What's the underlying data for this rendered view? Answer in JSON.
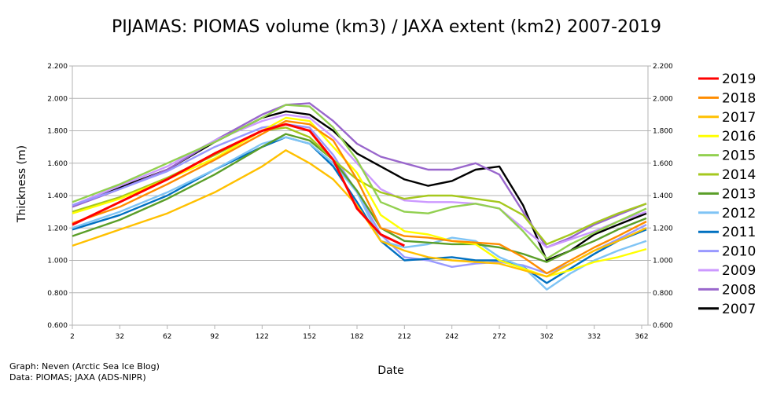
{
  "chart_data": {
    "type": "line",
    "title": "PIJAMAS: PIOMAS volume (km3) / JAXA extent (km2) 2007-2019",
    "xlabel": "Date",
    "ylabel": "Thickness (m)",
    "xlim": [
      2,
      365
    ],
    "ylim": [
      0.6,
      2.2
    ],
    "x_ticks": [
      2,
      32,
      62,
      92,
      122,
      152,
      182,
      212,
      242,
      272,
      302,
      332,
      362
    ],
    "x_tick_labels": [
      "2",
      "32",
      "62",
      "92",
      "122",
      "152",
      "182",
      "212",
      "242",
      "272",
      "302",
      "332",
      "362"
    ],
    "y_ticks": [
      0.6,
      0.8,
      1.0,
      1.2,
      1.4,
      1.6,
      1.8,
      2.0,
      2.2
    ],
    "y_tick_labels": [
      "0.600",
      "0.800",
      "1.000",
      "1.200",
      "1.400",
      "1.600",
      "1.800",
      "2.000",
      "2.200"
    ],
    "grid": true,
    "legend_position": "right",
    "x": [
      2,
      32,
      62,
      92,
      122,
      137,
      152,
      167,
      182,
      197,
      212,
      227,
      242,
      257,
      272,
      287,
      302,
      317,
      332,
      347,
      365
    ],
    "series": [
      {
        "name": "2019",
        "color": "#ff0000",
        "values": [
          1.22,
          1.36,
          1.5,
          1.66,
          1.8,
          1.84,
          1.8,
          1.62,
          1.32,
          1.16,
          1.09,
          null,
          null,
          null,
          null,
          null,
          null,
          null,
          null,
          null,
          null
        ]
      },
      {
        "name": "2018",
        "color": "#ff8c00",
        "values": [
          1.23,
          1.33,
          1.47,
          1.62,
          1.78,
          1.86,
          1.84,
          1.74,
          1.5,
          1.2,
          1.15,
          1.14,
          1.12,
          1.11,
          1.1,
          1.02,
          0.92,
          1.0,
          1.08,
          1.15,
          1.24
        ]
      },
      {
        "name": "2017",
        "color": "#ffc000",
        "values": [
          1.09,
          1.19,
          1.29,
          1.42,
          1.58,
          1.68,
          1.6,
          1.5,
          1.34,
          1.12,
          1.06,
          1.02,
          1.0,
          0.99,
          0.98,
          0.94,
          0.9,
          0.98,
          1.06,
          1.12,
          1.2
        ]
      },
      {
        "name": "2016",
        "color": "#ffff00",
        "values": [
          1.29,
          1.38,
          1.5,
          1.63,
          1.8,
          1.88,
          1.86,
          1.7,
          1.54,
          1.28,
          1.18,
          1.16,
          1.12,
          1.1,
          1.0,
          0.95,
          0.9,
          0.94,
          0.99,
          1.02,
          1.07
        ]
      },
      {
        "name": "2015",
        "color": "#92d050",
        "values": [
          1.36,
          1.47,
          1.6,
          1.73,
          1.88,
          1.96,
          1.95,
          1.82,
          1.62,
          1.36,
          1.3,
          1.29,
          1.33,
          1.35,
          1.32,
          1.18,
          1.01,
          1.1,
          1.17,
          1.24,
          1.32
        ]
      },
      {
        "name": "2014",
        "color": "#a5c81e",
        "values": [
          1.3,
          1.39,
          1.51,
          1.65,
          1.8,
          1.82,
          1.76,
          1.62,
          1.5,
          1.42,
          1.38,
          1.4,
          1.4,
          1.38,
          1.36,
          1.28,
          1.1,
          1.16,
          1.23,
          1.29,
          1.35
        ]
      },
      {
        "name": "2013",
        "color": "#5a9e28",
        "values": [
          1.15,
          1.25,
          1.38,
          1.53,
          1.7,
          1.78,
          1.74,
          1.62,
          1.43,
          1.2,
          1.12,
          1.11,
          1.1,
          1.1,
          1.08,
          1.04,
          0.99,
          1.06,
          1.12,
          1.19,
          1.26
        ]
      },
      {
        "name": "2012",
        "color": "#7fc4f5",
        "values": [
          1.2,
          1.3,
          1.42,
          1.56,
          1.72,
          1.76,
          1.72,
          1.6,
          1.42,
          1.12,
          1.08,
          1.1,
          1.14,
          1.12,
          1.02,
          0.96,
          0.82,
          0.92,
          1.0,
          1.06,
          1.12
        ]
      },
      {
        "name": "2011",
        "color": "#0070c0",
        "values": [
          1.19,
          1.28,
          1.4,
          1.56,
          1.7,
          1.76,
          1.72,
          1.58,
          1.36,
          1.12,
          1.0,
          1.01,
          1.02,
          1.0,
          1.0,
          0.96,
          0.86,
          0.95,
          1.04,
          1.12,
          1.19
        ]
      },
      {
        "name": "2010",
        "color": "#9999ff",
        "values": [
          1.34,
          1.44,
          1.55,
          1.7,
          1.82,
          1.84,
          1.82,
          1.65,
          1.42,
          1.16,
          1.02,
          1.0,
          0.96,
          0.98,
          0.99,
          0.97,
          0.92,
          0.98,
          1.06,
          1.13,
          1.22
        ]
      },
      {
        "name": "2009",
        "color": "#cc99ff",
        "values": [
          1.34,
          1.46,
          1.58,
          1.74,
          1.86,
          1.9,
          1.88,
          1.76,
          1.6,
          1.44,
          1.37,
          1.36,
          1.36,
          1.35,
          1.32,
          1.2,
          1.08,
          1.13,
          1.18,
          1.24,
          1.3
        ]
      },
      {
        "name": "2008",
        "color": "#9966cc",
        "values": [
          1.33,
          1.44,
          1.56,
          1.74,
          1.9,
          1.96,
          1.97,
          1.86,
          1.72,
          1.64,
          1.6,
          1.56,
          1.56,
          1.6,
          1.53,
          1.3,
          1.08,
          1.14,
          1.22,
          1.28,
          1.35
        ]
      },
      {
        "name": "2007",
        "color": "#000000",
        "values": [
          1.34,
          1.45,
          1.56,
          1.73,
          1.88,
          1.92,
          1.9,
          1.8,
          1.66,
          1.58,
          1.5,
          1.46,
          1.49,
          1.56,
          1.58,
          1.34,
          1.0,
          1.06,
          1.16,
          1.22,
          1.29
        ]
      }
    ]
  },
  "credits": {
    "line1": "Graph: Neven (Arctic Sea Ice Blog)",
    "line2": "Data: PIOMAS; JAXA (ADS-NIPR)"
  }
}
